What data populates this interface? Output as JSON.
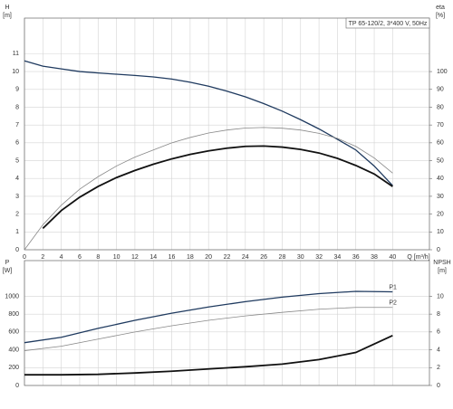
{
  "chart_data": [
    {
      "type": "line",
      "title": "TP 65-120/2, 3*400 V, 50Hz",
      "ylabel_lines": [
        "H",
        "[m]"
      ],
      "y2label_lines": [
        "eta",
        "[%]"
      ],
      "xlabel": "Q [m³/h]",
      "x": [
        0,
        2,
        4,
        6,
        8,
        10,
        12,
        14,
        16,
        18,
        20,
        22,
        24,
        26,
        28,
        30,
        32,
        34,
        36,
        38,
        40
      ],
      "xlim": [
        0,
        44
      ],
      "xticks": [
        0,
        2,
        4,
        6,
        8,
        10,
        12,
        14,
        16,
        18,
        20,
        22,
        24,
        26,
        28,
        30,
        32,
        34,
        36,
        38,
        40
      ],
      "xtick_labels": true,
      "ylim": [
        0,
        13
      ],
      "yticks": [
        0,
        1,
        2,
        3,
        4,
        5,
        6,
        7,
        8,
        9,
        10,
        11
      ],
      "y2lim": [
        0,
        130
      ],
      "y2ticks": [
        0,
        10,
        20,
        30,
        40,
        50,
        60,
        70,
        80,
        90,
        100
      ],
      "grid": true,
      "series": [
        {
          "color": "#1f3a5f",
          "linewidth": 1.3,
          "values": [
            10.6,
            10.3,
            10.15,
            10.0,
            9.92,
            9.85,
            9.78,
            9.7,
            9.58,
            9.4,
            9.18,
            8.9,
            8.58,
            8.2,
            7.78,
            7.3,
            6.78,
            6.2,
            5.6,
            4.7,
            3.6
          ]
        },
        {
          "color": "#888888",
          "linewidth": 0.8,
          "axis": "y2",
          "values": [
            0,
            14,
            25,
            34,
            41,
            47,
            52,
            56,
            60,
            63,
            65.5,
            67.2,
            68.3,
            68.6,
            68.2,
            67.2,
            65.3,
            62.5,
            58,
            51.5,
            43
          ]
        },
        {
          "color": "#111111",
          "linewidth": 1.8,
          "axis": "y2",
          "values": [
            null,
            12,
            22,
            29.5,
            35.5,
            40.5,
            44.5,
            48,
            51,
            53.5,
            55.5,
            57,
            58,
            58.2,
            57.6,
            56.3,
            54.3,
            51.3,
            47.3,
            42.5,
            35.5
          ]
        }
      ]
    },
    {
      "type": "line",
      "ylabel_lines": [
        "P",
        "[W]"
      ],
      "y2label_lines": [
        "NPSH",
        "[m]"
      ],
      "x": [
        0,
        4,
        8,
        12,
        16,
        20,
        24,
        28,
        32,
        36,
        40
      ],
      "xlim": [
        0,
        44
      ],
      "xticks": [
        0,
        2,
        4,
        6,
        8,
        10,
        12,
        14,
        16,
        18,
        20,
        22,
        24,
        26,
        28,
        30,
        32,
        34,
        36,
        38,
        40
      ],
      "xtick_labels": false,
      "ylim": [
        0,
        1400
      ],
      "yticks": [
        0,
        200,
        400,
        600,
        800,
        1000
      ],
      "y2lim": [
        0,
        14
      ],
      "y2ticks": [
        0,
        2,
        4,
        6,
        8,
        10
      ],
      "grid": true,
      "series": [
        {
          "name": "P1",
          "color": "#1f3a5f",
          "linewidth": 1.3,
          "values": [
            480,
            540,
            640,
            730,
            810,
            880,
            940,
            990,
            1030,
            1055,
            1050
          ]
        },
        {
          "name": "P2",
          "color": "#888888",
          "linewidth": 0.8,
          "values": [
            390,
            440,
            520,
            600,
            670,
            730,
            780,
            820,
            855,
            875,
            875
          ]
        },
        {
          "color": "#111111",
          "linewidth": 1.8,
          "axis": "y2",
          "values": [
            1.2,
            1.2,
            1.25,
            1.4,
            1.6,
            1.85,
            2.1,
            2.4,
            2.9,
            3.7,
            5.6
          ]
        }
      ]
    }
  ]
}
